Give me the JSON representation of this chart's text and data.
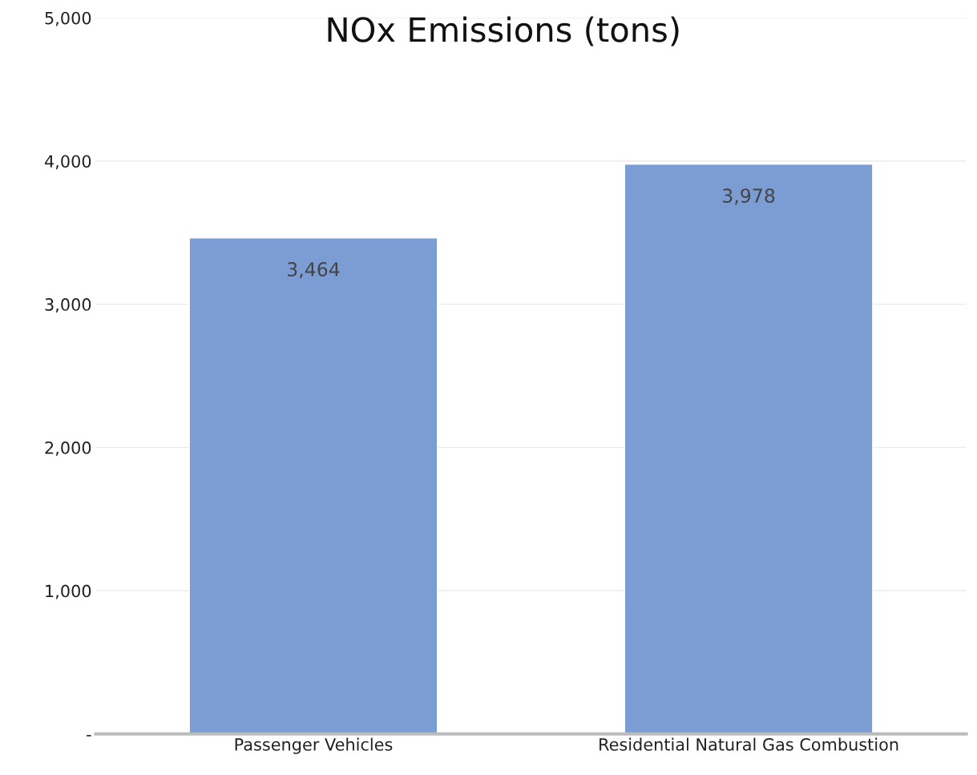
{
  "chart_data": {
    "type": "bar",
    "title": "NOx Emissions (tons)",
    "categories": [
      "Passenger Vehicles",
      "Residential Natural Gas Combustion"
    ],
    "values": [
      3464,
      3978
    ],
    "color": "#7b9dd4",
    "value_labels": [
      "3,464",
      "3,978"
    ],
    "ylim": [
      0,
      5000
    ],
    "yticks": [
      {
        "value": 0,
        "label": "-"
      },
      {
        "value": 1000,
        "label": "1,000"
      },
      {
        "value": 2000,
        "label": "2,000"
      },
      {
        "value": 3000,
        "label": "3,000"
      },
      {
        "value": 4000,
        "label": "4,000"
      },
      {
        "value": 5000,
        "label": "5,000"
      }
    ],
    "grid": "y",
    "legend": false
  }
}
